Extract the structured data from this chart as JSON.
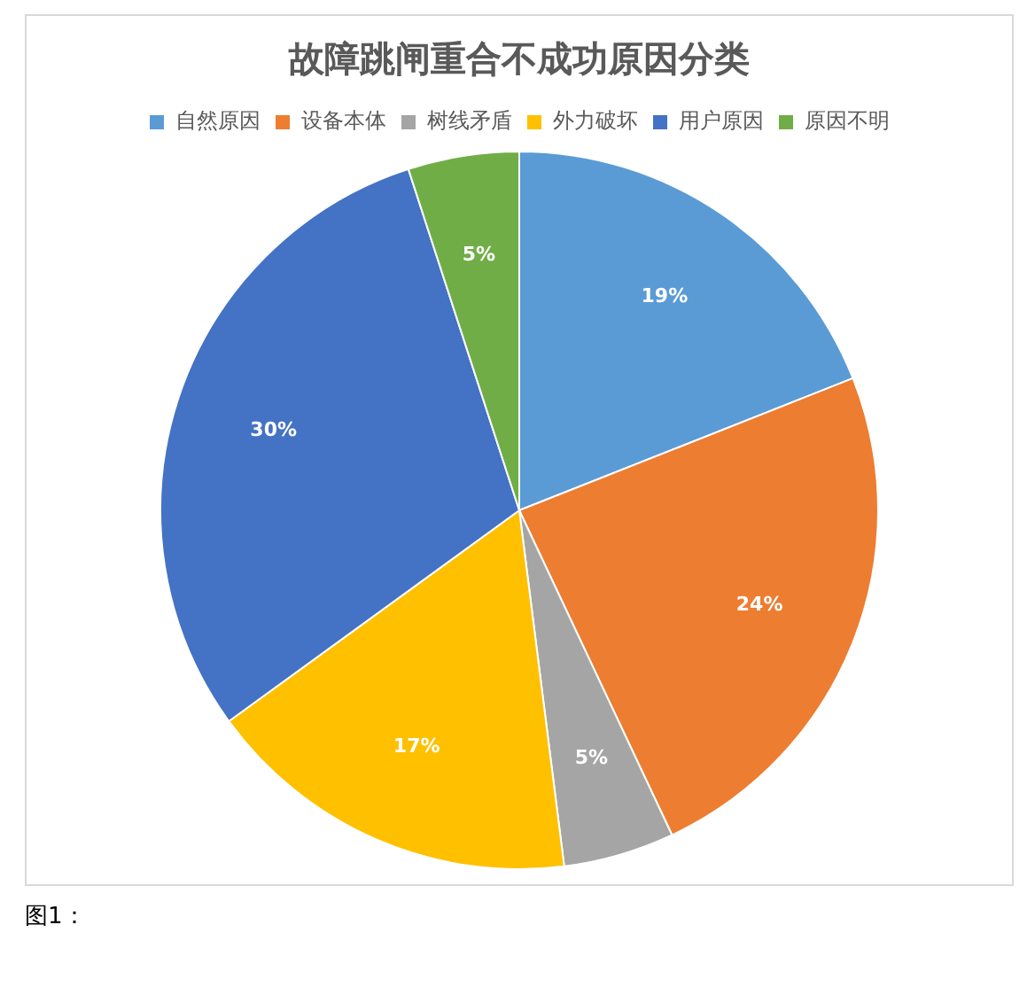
{
  "chart_data": {
    "type": "pie",
    "title": "故障跳闸重合不成功原因分类",
    "categories": [
      "自然原因",
      "设备本体",
      "树线矛盾",
      "外力破坏",
      "用户原因",
      "原因不明"
    ],
    "values": [
      19,
      24,
      5,
      17,
      30,
      5
    ],
    "colors": [
      "#5b9bd5",
      "#ed7d31",
      "#a5a5a5",
      "#ffc000",
      "#4472c4",
      "#70ad47"
    ],
    "value_labels": [
      "19%",
      "24%",
      "5%",
      "17%",
      "30%",
      "5%"
    ],
    "legend": "top",
    "annotations": [
      "图1："
    ]
  }
}
